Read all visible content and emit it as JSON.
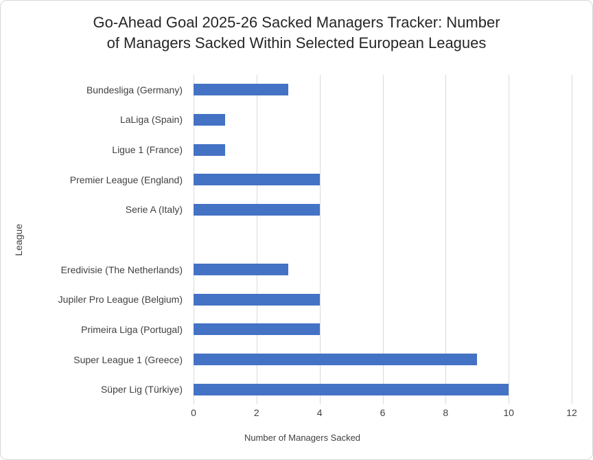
{
  "chart_data": {
    "type": "bar",
    "orientation": "horizontal",
    "title": "Go-Ahead Goal 2025-26 Sacked Managers Tracker: Number of Managers Sacked Within Selected European Leagues",
    "title_lines": [
      "Go-Ahead Goal 2025-26 Sacked Managers Tracker: Number",
      "of Managers Sacked Within Selected European Leagues"
    ],
    "ylabel": "League",
    "categories": [
      "Bundesliga (Germany)",
      "LaLiga (Spain)",
      "Ligue 1 (France)",
      "Premier League (England)",
      "Serie A (Italy)",
      "",
      "Eredivisie (The Netherlands)",
      "Jupiler Pro League (Belgium)",
      "Primeira Liga (Portugal)",
      "Super League 1 (Greece)",
      "Süper Lig (Türkiye)"
    ],
    "series": [
      {
        "name": "Number of Managers Sacked",
        "color": "#4472C4",
        "values": [
          3,
          1,
          1,
          4,
          4,
          null,
          3,
          4,
          4,
          9,
          10
        ]
      }
    ],
    "xlim": [
      0,
      12
    ],
    "xticks": [
      "0",
      "2",
      "4",
      "6",
      "8",
      "10",
      "12"
    ],
    "grid": "vertical-on",
    "legend_position": "bottom-center",
    "colors": {
      "bar": "#4472C4",
      "gridline": "#D9D9D9",
      "title_text": "#262626",
      "label_text": "#404040",
      "frame_border": "#D7D7D7",
      "background": "#FFFFFF"
    }
  }
}
